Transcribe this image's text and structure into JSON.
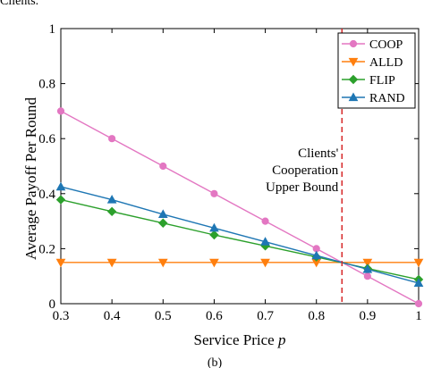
{
  "header_fragment": "Clients.",
  "caption": "(b)",
  "chart_data": {
    "type": "line",
    "title": "",
    "xlabel": "Service Price p",
    "ylabel": "Average Payoff Per Round",
    "xlim": [
      0.3,
      1.0
    ],
    "ylim": [
      0,
      1.0
    ],
    "x_ticks": [
      0.3,
      0.4,
      0.5,
      0.6,
      0.7,
      0.8,
      0.9,
      1.0
    ],
    "y_ticks": [
      0,
      0.2,
      0.4,
      0.6,
      0.8,
      1.0
    ],
    "x_tick_labels": [
      "0.3",
      "0.4",
      "0.5",
      "0.6",
      "0.7",
      "0.8",
      "0.9",
      "1"
    ],
    "y_tick_labels": [
      "0",
      "0.2",
      "0.4",
      "0.6",
      "0.8",
      "1"
    ],
    "grid": false,
    "legend_position": "top-right",
    "x": [
      0.3,
      0.4,
      0.5,
      0.6,
      0.7,
      0.8,
      0.9,
      1.0
    ],
    "series": [
      {
        "name": "COOP",
        "color": "#e377c2",
        "marker": "circle",
        "values": [
          0.7,
          0.6,
          0.5,
          0.4,
          0.3,
          0.2,
          0.1,
          0.0
        ]
      },
      {
        "name": "ALLD",
        "color": "#ff7f0e",
        "marker": "triangle-down",
        "values": [
          0.15,
          0.15,
          0.15,
          0.15,
          0.15,
          0.15,
          0.15,
          0.15
        ]
      },
      {
        "name": "FLIP",
        "color": "#2ca02c",
        "marker": "diamond",
        "values": [
          0.378,
          0.335,
          0.293,
          0.25,
          0.21,
          0.17,
          0.128,
          0.088
        ]
      },
      {
        "name": "RAND",
        "color": "#1f77b4",
        "marker": "triangle-up",
        "values": [
          0.425,
          0.378,
          0.325,
          0.275,
          0.225,
          0.175,
          0.125,
          0.075
        ]
      }
    ],
    "annotations": [
      {
        "type": "vline",
        "x": 0.85,
        "color": "#d62728",
        "style": "dashed",
        "label_lines": [
          "Clients'",
          "Cooperation",
          "Upper Bound"
        ]
      }
    ]
  }
}
